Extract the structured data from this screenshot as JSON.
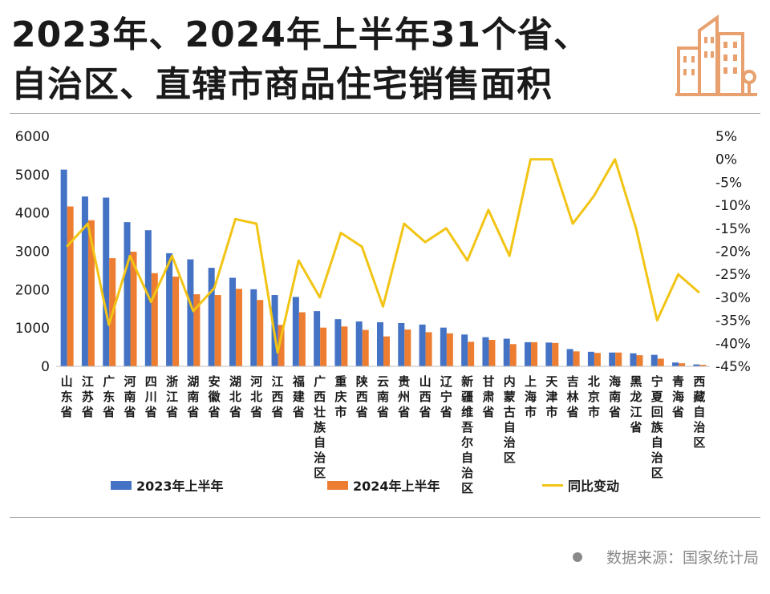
{
  "header": {
    "title_line1": "2023年、2024年上半年31个省、",
    "title_line2": "自治区、直辖市商品住宅销售面积",
    "logo_icon": "city-buildings-icon"
  },
  "colors": {
    "series_2023": "#4472C4",
    "series_2024": "#ED7D31",
    "yoy_line": "#F2C414",
    "logo": "#E8A06E"
  },
  "source": {
    "text": "数据来源：国家统计局"
  },
  "chart_data": {
    "type": "bar",
    "categories": [
      "山东省",
      "江苏省",
      "广东省",
      "河南省",
      "四川省",
      "浙江省",
      "湖南省",
      "安徽省",
      "湖北省",
      "河北省",
      "江西省",
      "福建省",
      "广西壮族自治区",
      "重庆市",
      "陕西省",
      "云南省",
      "贵州省",
      "山西省",
      "辽宁省",
      "新疆维吾尔自治区",
      "甘肃省",
      "内蒙古自治区",
      "上海市",
      "天津市",
      "吉林省",
      "北京市",
      "海南省",
      "黑龙江省",
      "宁夏回族自治区",
      "青海省",
      "西藏自治区"
    ],
    "series": [
      {
        "name": "2023年上半年",
        "type": "bar",
        "axis": "left",
        "values": [
          5130,
          4430,
          4400,
          3760,
          3550,
          2950,
          2790,
          2570,
          2310,
          2010,
          1860,
          1810,
          1440,
          1230,
          1170,
          1150,
          1130,
          1090,
          1010,
          830,
          760,
          720,
          630,
          620,
          450,
          380,
          360,
          340,
          300,
          100,
          50
        ]
      },
      {
        "name": "2024年上半年",
        "type": "bar",
        "axis": "left",
        "values": [
          4170,
          3810,
          2820,
          2990,
          2430,
          2340,
          1880,
          1860,
          2020,
          1730,
          1080,
          1410,
          1010,
          1040,
          950,
          780,
          960,
          890,
          860,
          640,
          690,
          580,
          630,
          610,
          390,
          350,
          360,
          290,
          200,
          80,
          40
        ]
      },
      {
        "name": "同比变动",
        "type": "line",
        "axis": "right",
        "values": [
          -19,
          -14,
          -36,
          -21,
          -31,
          -21,
          -33,
          -28,
          -13,
          -14,
          -42,
          -22,
          -30,
          -16,
          -19,
          -32,
          -14,
          -18,
          -15,
          -22,
          -11,
          -21,
          0,
          0,
          -14,
          -8,
          0,
          -15,
          -35,
          -25,
          -29
        ]
      }
    ],
    "y_left": {
      "min": 0,
      "max": 6000,
      "ticks": [
        0,
        1000,
        2000,
        3000,
        4000,
        5000,
        6000
      ]
    },
    "y_right": {
      "min": -45,
      "max": 5,
      "unit": "%",
      "ticks": [
        5,
        0,
        -5,
        -10,
        -15,
        -20,
        -25,
        -30,
        -35,
        -40,
        -45
      ]
    },
    "grid": false,
    "legend_position": "bottom"
  }
}
